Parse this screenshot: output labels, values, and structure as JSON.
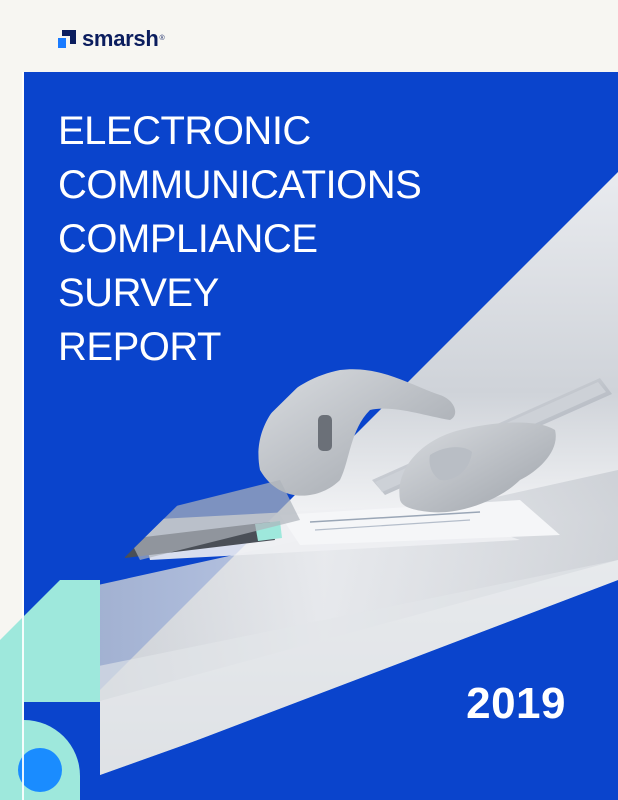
{
  "brand": {
    "name": "smarsh",
    "registered_mark": "®"
  },
  "title_lines": [
    "ELECTRONIC",
    "COMMUNICATIONS",
    "COMPLIANCE",
    "SURVEY",
    "REPORT"
  ],
  "year": "2019",
  "colors": {
    "background": "#f7f6f2",
    "primary_blue": "#0a44cc",
    "mint": "#9ee8dc",
    "logo_navy": "#0b1d5e",
    "logo_accent": "#1a7bff",
    "bright_blue_circle": "#1a8cff"
  },
  "icons": {
    "logo_mark": "smarsh-logo-icon",
    "decor_circle": "circle-shape"
  }
}
